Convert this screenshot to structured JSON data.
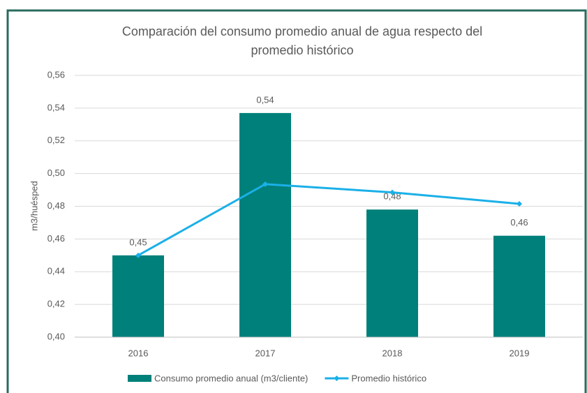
{
  "chart_data": {
    "type": "bar_line",
    "title": "Comparación del consumo promedio anual de agua respecto del promedio histórico",
    "y_label": "m3/huésped",
    "categories": [
      "2016",
      "2017",
      "2018",
      "2019"
    ],
    "series": [
      {
        "name": "Consumo promedio anual (m3/cliente)",
        "type": "bar",
        "color": "#00807a",
        "values": [
          0.45,
          0.537,
          0.478,
          0.462
        ],
        "value_labels": [
          "0,45",
          "0,54",
          "0,48",
          "0,46"
        ]
      },
      {
        "name": "Promedio histórico",
        "type": "line",
        "color": "#1ab0e8",
        "values": [
          0.45,
          0.4935,
          0.4885,
          0.4815
        ]
      }
    ],
    "ylim": [
      0.4,
      0.56
    ],
    "yticks": [
      {
        "value": 0.4,
        "label": "0,40"
      },
      {
        "value": 0.42,
        "label": "0,42"
      },
      {
        "value": 0.44,
        "label": "0,44"
      },
      {
        "value": 0.46,
        "label": "0,46"
      },
      {
        "value": 0.48,
        "label": "0,48"
      },
      {
        "value": 0.5,
        "label": "0,50"
      },
      {
        "value": 0.52,
        "label": "0,52"
      },
      {
        "value": 0.54,
        "label": "0,54"
      },
      {
        "value": 0.56,
        "label": "0,56"
      }
    ],
    "grid": true
  }
}
